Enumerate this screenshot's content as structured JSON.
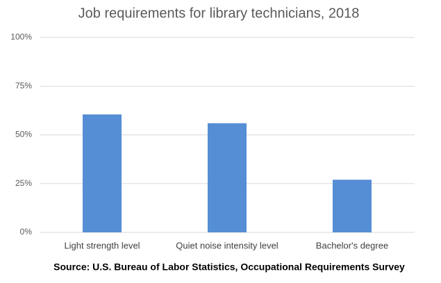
{
  "chart_data": {
    "type": "bar",
    "title": "Job requirements for library technicians, 2018",
    "categories": [
      "Light strength level",
      "Quiet noise intensity level",
      "Bachelor's degree"
    ],
    "values": [
      60.5,
      56,
      27
    ],
    "color": "#558ed5",
    "ylim": [
      0,
      100
    ],
    "yticks": [
      {
        "value": 0,
        "label": "0%"
      },
      {
        "value": 25,
        "label": "25%"
      },
      {
        "value": 50,
        "label": "50%"
      },
      {
        "value": 75,
        "label": "75%"
      },
      {
        "value": 100,
        "label": "100%"
      }
    ],
    "grid": true,
    "source": "Source: U.S. Bureau of Labor Statistics, Occupational Requirements Survey"
  }
}
